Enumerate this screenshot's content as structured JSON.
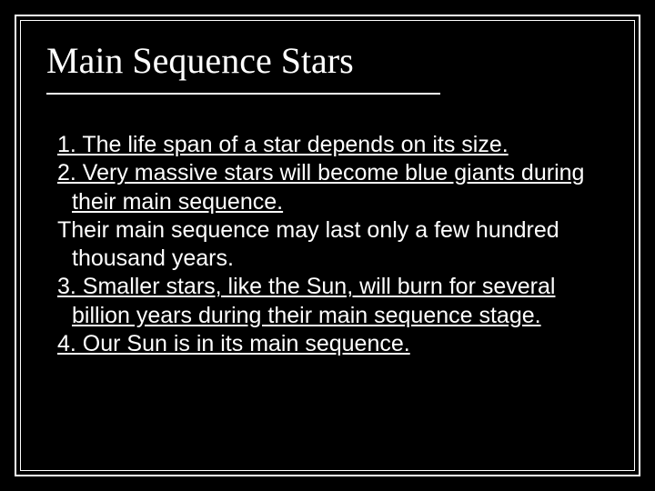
{
  "slide": {
    "title": "Main Sequence Stars",
    "background_color": "#000000",
    "text_color": "#ffffff",
    "border_color": "#ffffff",
    "title_font": "Times New Roman",
    "title_fontsize": 40,
    "body_font": "Arial",
    "body_fontsize": 25,
    "items": [
      {
        "text": "1. The life span of a star depends on its size.",
        "underlined": true
      },
      {
        "text": "2. Very massive stars will become blue giants during their main sequence.",
        "underlined": true
      },
      {
        "text": " Their main sequence may last only a few hundred thousand years.",
        "underlined": false
      },
      {
        "text": "3. Smaller stars, like the Sun, will burn for several billion years during their main sequence stage.",
        "underlined": true
      },
      {
        "text": "4. Our Sun is in its main sequence.",
        "underlined": true
      }
    ]
  }
}
